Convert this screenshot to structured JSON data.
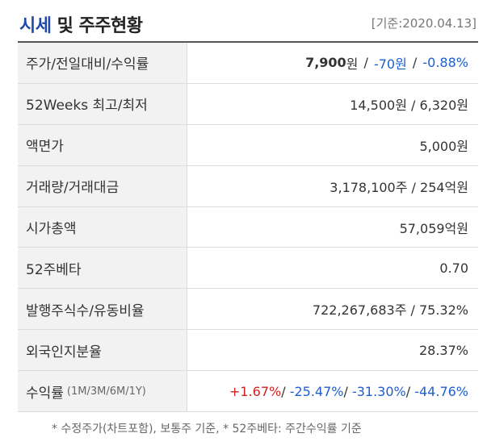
{
  "header": {
    "title_accent": "시세",
    "title_rest": " 및 주주현황",
    "base_date": "[기준:2020.04.13]"
  },
  "rows": {
    "price": {
      "label": "주가/전일대비/수익률",
      "price_value": "7,900",
      "price_unit": "원",
      "change": "-70원",
      "rate": "-0.88%"
    },
    "week52": {
      "label": "52Weeks 최고/최저",
      "value": "14,500원 / 6,320원"
    },
    "face": {
      "label": "액면가",
      "value": "5,000원"
    },
    "volume": {
      "label": "거래량/거래대금",
      "value": "3,178,100주 / 254억원"
    },
    "marketcap": {
      "label": "시가총액",
      "value": "57,059억원"
    },
    "beta": {
      "label": "52주베타",
      "value": "0.70"
    },
    "shares": {
      "label": "발행주식수/유동비율",
      "value": "722,267,683주 / 75.32%"
    },
    "foreign": {
      "label": "외국인지분율",
      "value": "28.37%"
    },
    "returns": {
      "label": "수익률",
      "label_sub": "(1M/3M/6M/1Y)",
      "r1m": "+1.67%",
      "r3m": "-25.47%",
      "r6m": "-31.30%",
      "r1y": "-44.76%"
    }
  },
  "footnote": "* 수정주가(차트포함), 보통주 기준, * 52주베타: 주간수익률 기준"
}
